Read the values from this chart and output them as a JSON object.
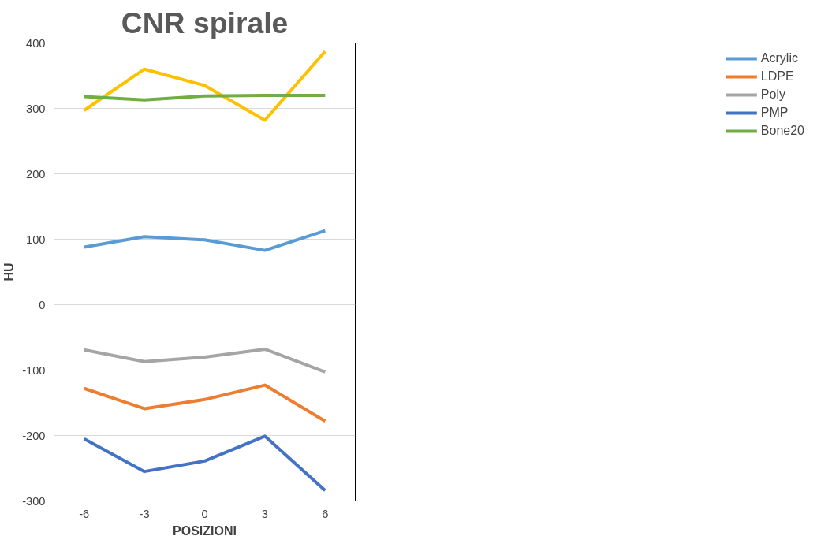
{
  "chart_data": {
    "type": "line",
    "title": "CNR spirale",
    "xlabel": "POSIZIONI",
    "ylabel": "HU",
    "categories": [
      "-6",
      "-3",
      "0",
      "3",
      "6"
    ],
    "ylim": [
      -300,
      400
    ],
    "yticks": [
      -300,
      -200,
      -100,
      0,
      100,
      200,
      300,
      400
    ],
    "grid": "y",
    "legend": "right",
    "line_style": "solid",
    "series": [
      {
        "name": "Acrylic",
        "color": "#5b9bd5",
        "values": [
          88,
          104,
          99,
          83,
          113
        ]
      },
      {
        "name": "LDPE",
        "color": "#ed7d31",
        "values": [
          -128,
          -159,
          -145,
          -123,
          -178
        ]
      },
      {
        "name": "Poly",
        "color": "#a5a5a5",
        "values": [
          -69,
          -87,
          -80,
          -68,
          -103
        ]
      },
      {
        "color": "#ffc000",
        "values": [
          297,
          360,
          335,
          282,
          387
        ]
      },
      {
        "name": "PMP",
        "color": "#4472c4",
        "values": [
          -205,
          -255,
          -239,
          -201,
          -284
        ]
      },
      {
        "name": "Bone20",
        "color": "#70ad47",
        "values": [
          318,
          313,
          319,
          320,
          320
        ]
      }
    ]
  }
}
